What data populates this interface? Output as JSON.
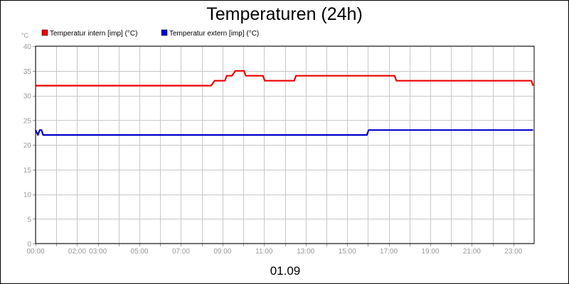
{
  "chart_data": {
    "type": "line",
    "title": "Temperaturen (24h)",
    "date_label": "01.09",
    "ylabel": "°C",
    "ylim": [
      0,
      40
    ],
    "yticks": [
      0,
      5,
      10,
      15,
      20,
      25,
      30,
      35,
      40
    ],
    "xlim": [
      "00:00",
      "24:00"
    ],
    "xticks": [
      "00:00",
      "01:00",
      "02:00",
      "03:00",
      "04:00",
      "05:00",
      "06:00",
      "07:00",
      "08:00",
      "09:00",
      "10:00",
      "11:00",
      "12:00",
      "13:00",
      "14:00",
      "15:00",
      "16:00",
      "17:00",
      "18:00",
      "19:00",
      "20:00",
      "21:00",
      "22:00",
      "23:00"
    ],
    "xtick_labels": [
      {
        "x": "00:00",
        "label": "00:00"
      },
      {
        "x": "02:00",
        "label": "02:00"
      },
      {
        "x": "03:00",
        "label": "03:00"
      },
      {
        "x": "05:00",
        "label": "05:00"
      },
      {
        "x": "07:00",
        "label": "07:00"
      },
      {
        "x": "09:00",
        "label": "09:00"
      },
      {
        "x": "11:00",
        "label": "11:00"
      },
      {
        "x": "13:00",
        "label": "13:00"
      },
      {
        "x": "15:00",
        "label": "15:00"
      },
      {
        "x": "17:00",
        "label": "17:00"
      },
      {
        "x": "19:00",
        "label": "19:00"
      },
      {
        "x": "21:00",
        "label": "21:00"
      },
      {
        "x": "23:00",
        "label": "23:00"
      }
    ],
    "grid": true,
    "legend_position": "top-left",
    "series": [
      {
        "name": "Temperatur intern [imp] (°C)",
        "color": "#ee0000",
        "points": [
          [
            "00:00",
            32
          ],
          [
            "08:27",
            32
          ],
          [
            "08:37",
            33
          ],
          [
            "09:07",
            33
          ],
          [
            "09:12",
            34
          ],
          [
            "09:27",
            34
          ],
          [
            "09:37",
            35
          ],
          [
            "10:02",
            35
          ],
          [
            "10:07",
            34
          ],
          [
            "10:57",
            34
          ],
          [
            "11:02",
            33
          ],
          [
            "12:27",
            33
          ],
          [
            "12:32",
            34
          ],
          [
            "17:17",
            34
          ],
          [
            "17:22",
            33
          ],
          [
            "23:52",
            33
          ],
          [
            "23:57",
            32
          ]
        ]
      },
      {
        "name": "Temperatur extern [imp] (°C)",
        "color": "#0000cc",
        "points": [
          [
            "00:00",
            23
          ],
          [
            "00:07",
            22
          ],
          [
            "00:12",
            23
          ],
          [
            "00:17",
            23
          ],
          [
            "00:22",
            22
          ],
          [
            "15:57",
            22
          ],
          [
            "16:02",
            23
          ],
          [
            "23:57",
            23
          ]
        ]
      }
    ]
  }
}
